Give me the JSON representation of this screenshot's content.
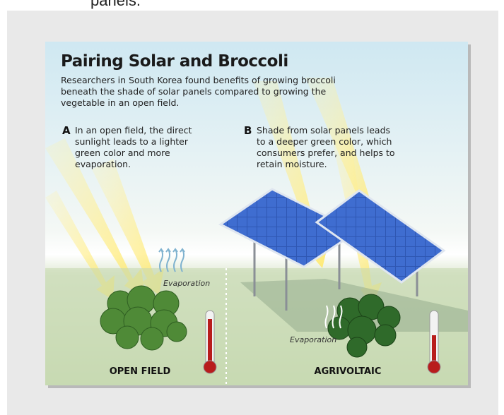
{
  "caption_fragment": "panels.",
  "infographic": {
    "title": "Pairing Solar and Broccoli",
    "intro": [
      "Researchers in South Korea found benefits of growing broccoli",
      "beneath the shade of solar panels compared to growing the",
      "vegetable in an open field."
    ],
    "panels": [
      {
        "letter": "A",
        "text": [
          "In an open field, the direct",
          "sunlight leads to a lighter",
          "green color and more",
          "evaporation."
        ],
        "evaporation_label": "Evaporation",
        "label": "OPEN FIELD"
      },
      {
        "letter": "B",
        "text": [
          "Shade from solar panels leads",
          "to a deeper green color, which",
          "consumers prefer, and helps to",
          "retain moisture."
        ],
        "evaporation_label": "Evaporation",
        "label": "AGRIVOLTAIC"
      }
    ]
  }
}
